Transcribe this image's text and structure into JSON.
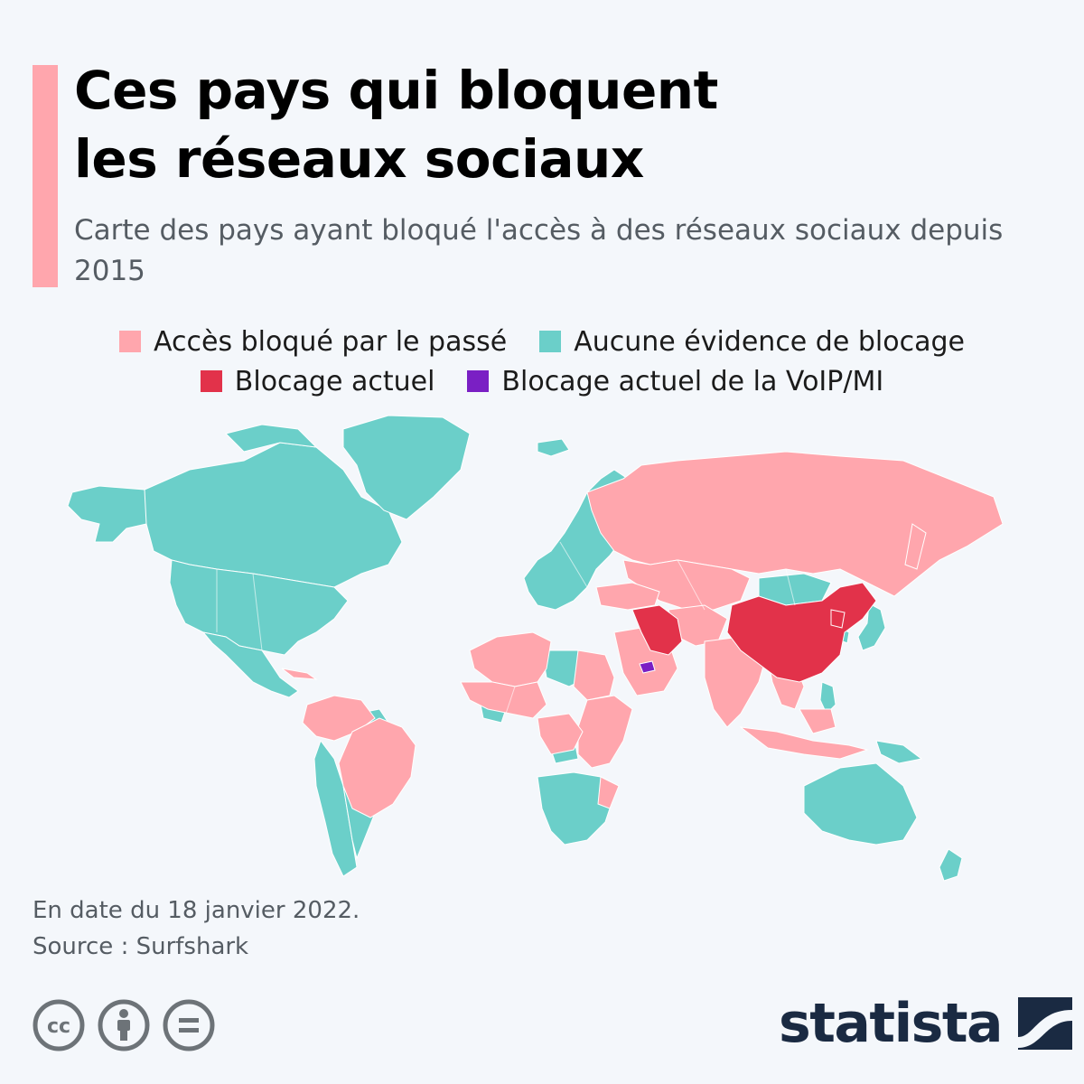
{
  "title_lines": [
    "Ces pays qui bloquent",
    "les réseaux sociaux"
  ],
  "subtitle": "Carte des pays ayant bloqué l'accès à des réseaux sociaux depuis 2015",
  "legend": [
    {
      "label": "Accès bloqué par le passé",
      "color": "#ffa6ad"
    },
    {
      "label": "Aucune évidence de blocage",
      "color": "#6bcfc9"
    },
    {
      "label": "Blocage actuel",
      "color": "#e2324a"
    },
    {
      "label": "Blocage actuel de la VoIP/MI",
      "color": "#7a1fc4"
    }
  ],
  "map": {
    "background": "#f4f7fb",
    "categories": {
      "past_blocked": [
        "Russia",
        "Brazil",
        "Venezuela",
        "Colombia",
        "Bolivia",
        "Turkey",
        "Egypt",
        "Saudi Arabia",
        "India",
        "Pakistan",
        "Afghanistan",
        "Kazakhstan",
        "Vietnam",
        "Indonesia",
        "Ethiopia",
        "Nigeria",
        "Algeria",
        "DR Congo",
        "Cuba"
      ],
      "no_evidence": [
        "Canada",
        "United States",
        "Mexico",
        "Greenland",
        "Argentina",
        "Chile",
        "Australia",
        "New Zealand",
        "Mongolia",
        "Japan",
        "South Korea",
        "Libya",
        "Angola",
        "South Africa",
        "Norway",
        "Sweden",
        "Finland",
        "Iceland"
      ],
      "current_blocking": [
        "China",
        "Iran",
        "North Korea"
      ],
      "voip_im_blocking": [
        "United Arab Emirates"
      ]
    }
  },
  "footnote": {
    "date_note": "En date du 18 janvier 2022.",
    "source": "Source : Surfshark"
  },
  "license_icons": [
    "creative-commons-icon",
    "attribution-icon",
    "no-derivatives-icon"
  ],
  "brand": {
    "name": "statista",
    "color": "#1a2a42"
  },
  "accent_color": "#ffa6ad"
}
